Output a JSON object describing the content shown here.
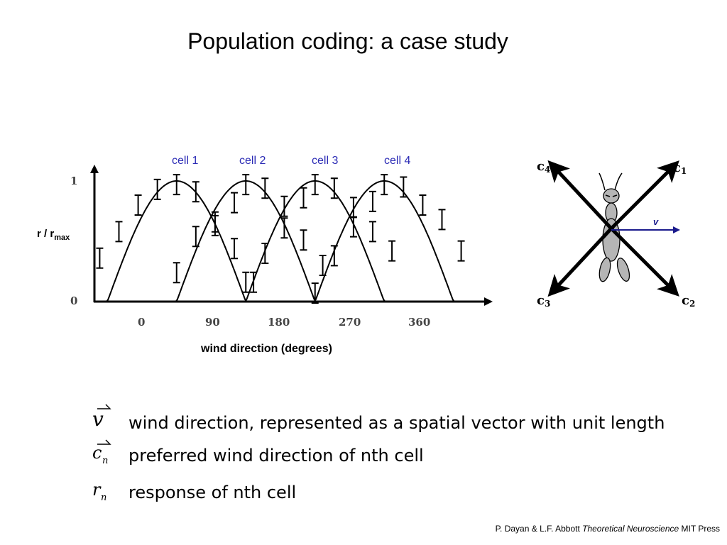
{
  "slide": {
    "title": "Population coding: a case study",
    "credit_authors": "P. Dayan & L.F. Abbott ",
    "credit_book": "Theoretical Neuroscience",
    "credit_publisher": " MIT Press"
  },
  "chart_data": {
    "type": "line",
    "title": "",
    "xlabel": "wind direction (degrees)",
    "ylabel_main": "r / r",
    "ylabel_sub": "max",
    "x_ticks": [
      "0",
      "90",
      "180",
      "270",
      "360"
    ],
    "y_ticks": [
      "0",
      "1"
    ],
    "xlim": [
      -65,
      445
    ],
    "ylim": [
      0,
      1.0
    ],
    "grid": false,
    "series": [
      {
        "name": "cell 1",
        "peak": 45,
        "x": [
          -55,
          -30,
          -5,
          20,
          45,
          70,
          95,
          120,
          145
        ],
        "y": [
          0.36,
          0.58,
          0.8,
          0.93,
          0.97,
          0.91,
          0.66,
          0.44,
          0.16
        ]
      },
      {
        "name": "cell 2",
        "peak": 135,
        "x": [
          45,
          70,
          95,
          120,
          135,
          160,
          185,
          210,
          235
        ],
        "y": [
          0.24,
          0.54,
          0.63,
          0.82,
          0.97,
          0.94,
          0.79,
          0.51,
          0.3
        ]
      },
      {
        "name": "cell 3",
        "peak": 225,
        "x": [
          135,
          160,
          185,
          210,
          225,
          250,
          275,
          300,
          325
        ],
        "y": [
          0.16,
          0.4,
          0.61,
          0.86,
          0.97,
          0.94,
          0.78,
          0.58,
          0.42
        ]
      },
      {
        "name": "cell 4",
        "peak": 315,
        "x": [
          225,
          250,
          275,
          300,
          315,
          340,
          365,
          390,
          415
        ],
        "y": [
          0.07,
          0.38,
          0.62,
          0.83,
          0.97,
          0.95,
          0.8,
          0.68,
          0.42
        ]
      }
    ]
  },
  "diagram": {
    "vector_label": "v",
    "c1": "c",
    "c1_sub": "1",
    "c2": "c",
    "c2_sub": "2",
    "c3": "c",
    "c3_sub": "3",
    "c4": "c",
    "c4_sub": "4"
  },
  "legend": [
    {
      "symbol": "v",
      "sub": "",
      "arrow": true,
      "text": "wind direction, represented as a spatial vector with unit length"
    },
    {
      "symbol": "c",
      "sub": "n",
      "arrow": true,
      "text": "preferred wind direction of nth cell"
    },
    {
      "symbol": "r",
      "sub": "n",
      "arrow": false,
      "text": "response of nth cell"
    }
  ],
  "colors": {
    "accent": "#2b2bb5",
    "arrow": "#1a1a8c",
    "ink": "#000000",
    "body": "#b5b5b5"
  }
}
